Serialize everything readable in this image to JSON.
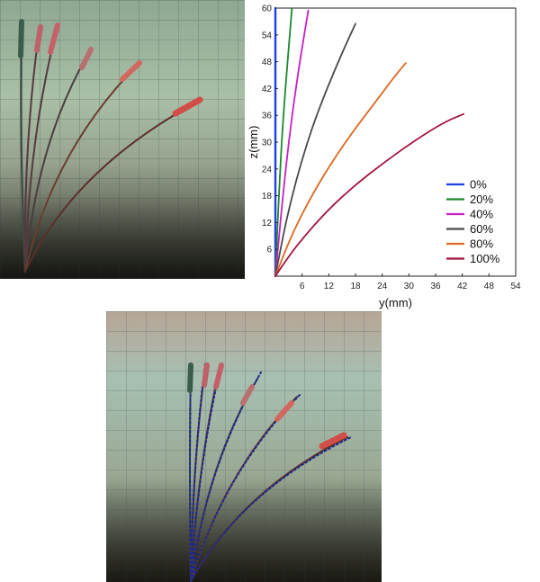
{
  "chart_data": {
    "type": "line",
    "title": "",
    "xlabel": "y(mm)",
    "ylabel": "z(mm)",
    "xlim": [
      0,
      54
    ],
    "ylim": [
      0,
      60
    ],
    "xticks": [
      6,
      12,
      18,
      24,
      30,
      36,
      42,
      48,
      54
    ],
    "yticks": [
      6,
      12,
      18,
      24,
      30,
      36,
      42,
      48,
      54,
      60
    ],
    "grid": false,
    "legend_position": "bottom-right",
    "series": [
      {
        "name": "0%",
        "color": "#1f3fe0",
        "x": [
          0,
          0,
          0,
          0,
          0,
          0,
          0
        ],
        "y": [
          0,
          10,
          20,
          30,
          40,
          50,
          60
        ]
      },
      {
        "name": "20%",
        "color": "#1a8a2a",
        "x": [
          0,
          0.4,
          0.9,
          1.4,
          2.1,
          2.9,
          3.7
        ],
        "y": [
          0,
          10,
          20,
          30,
          40,
          50,
          59.8
        ]
      },
      {
        "name": "40%",
        "color": "#c61fc6",
        "x": [
          0,
          0.9,
          1.9,
          3.0,
          4.3,
          5.8,
          7.4
        ],
        "y": [
          0,
          10,
          20,
          30,
          40,
          50,
          59.5
        ]
      },
      {
        "name": "60%",
        "color": "#4a4a4a",
        "x": [
          0,
          1.6,
          3.5,
          5.8,
          8.5,
          11.6,
          15.0,
          18.0
        ],
        "y": [
          0,
          8.5,
          17,
          25.5,
          34,
          42,
          50,
          56.5
        ]
      },
      {
        "name": "80%",
        "color": "#e0671f",
        "x": [
          0,
          2.5,
          5.5,
          9.0,
          13.0,
          17.5,
          22.5,
          27.0,
          29.3
        ],
        "y": [
          0,
          6.5,
          13,
          19.5,
          26,
          32.5,
          39,
          45,
          47.7
        ]
      },
      {
        "name": "100%",
        "color": "#a3163f",
        "x": [
          0,
          3.0,
          7.0,
          12.0,
          18.0,
          24.5,
          31.5,
          38.0,
          42.3
        ],
        "y": [
          0,
          4.5,
          9.5,
          15,
          20.5,
          25.5,
          30.5,
          34.5,
          36.3
        ]
      }
    ]
  }
}
